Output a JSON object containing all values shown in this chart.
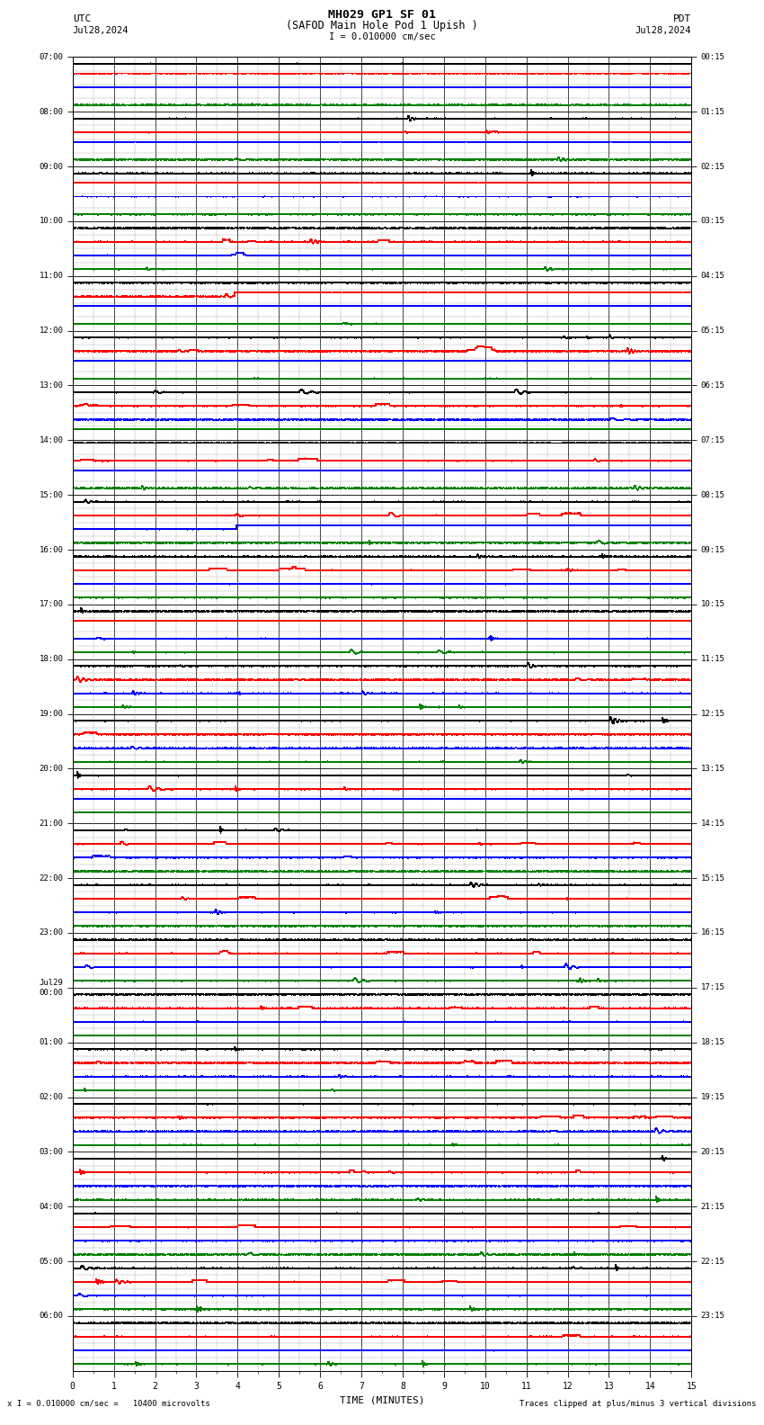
{
  "title_line1": "MH029 GP1 SF 01",
  "title_line2": "(SAFOD Main Hole Pod 1 Upish )",
  "scale_label": "I = 0.010000 cm/sec",
  "utc_label": "UTC",
  "pdt_label": "PDT",
  "date_left": "Jul28,2024",
  "date_right": "Jul28,2024",
  "bottom_label1": "x I = 0.010000 cm/sec =   10400 microvolts",
  "bottom_label2": "Traces clipped at plus/minus 3 vertical divisions",
  "xlabel": "TIME (MINUTES)",
  "ylabel_left_times": [
    "07:00",
    "08:00",
    "09:00",
    "10:00",
    "11:00",
    "12:00",
    "13:00",
    "14:00",
    "15:00",
    "16:00",
    "17:00",
    "18:00",
    "19:00",
    "20:00",
    "21:00",
    "22:00",
    "23:00",
    "Jul29\n00:00",
    "01:00",
    "02:00",
    "03:00",
    "04:00",
    "05:00",
    "06:00"
  ],
  "ylabel_right_times": [
    "00:15",
    "01:15",
    "02:15",
    "03:15",
    "04:15",
    "05:15",
    "06:15",
    "07:15",
    "08:15",
    "09:15",
    "10:15",
    "11:15",
    "12:15",
    "13:15",
    "14:15",
    "15:15",
    "16:15",
    "17:15",
    "18:15",
    "19:15",
    "20:15",
    "21:15",
    "22:15",
    "23:15"
  ],
  "num_rows": 24,
  "minutes_per_row": 15,
  "subtrace_colors_per_row": [
    [
      "#000000",
      "#ff0000",
      "#0000ff",
      "#008000"
    ],
    [
      "#000000",
      "#ff0000",
      "#0000ff",
      "#008000"
    ],
    [
      "#000000",
      "#ff0000",
      "#0000ff",
      "#008000"
    ],
    [
      "#000000",
      "#ff0000",
      "#0000ff",
      "#008000"
    ],
    [
      "#000000",
      "#ff0000",
      "#0000ff",
      "#008000"
    ],
    [
      "#000000",
      "#ff0000",
      "#0000ff",
      "#008000"
    ],
    [
      "#000000",
      "#ff0000",
      "#0000ff",
      "#008000"
    ],
    [
      "#000000",
      "#ff0000",
      "#0000ff",
      "#008000"
    ],
    [
      "#000000",
      "#ff0000",
      "#0000ff",
      "#008000"
    ],
    [
      "#000000",
      "#ff0000",
      "#0000ff",
      "#008000"
    ],
    [
      "#000000",
      "#ff0000",
      "#0000ff",
      "#008000"
    ],
    [
      "#000000",
      "#ff0000",
      "#0000ff",
      "#008000"
    ],
    [
      "#000000",
      "#ff0000",
      "#0000ff",
      "#008000"
    ],
    [
      "#000000",
      "#ff0000",
      "#0000ff",
      "#008000"
    ],
    [
      "#000000",
      "#ff0000",
      "#0000ff",
      "#008000"
    ],
    [
      "#000000",
      "#ff0000",
      "#0000ff",
      "#008000"
    ],
    [
      "#000000",
      "#ff0000",
      "#0000ff",
      "#008000"
    ],
    [
      "#000000",
      "#ff0000",
      "#0000ff",
      "#008000"
    ],
    [
      "#000000",
      "#ff0000",
      "#0000ff",
      "#008000"
    ],
    [
      "#000000",
      "#ff0000",
      "#0000ff",
      "#008000"
    ],
    [
      "#000000",
      "#ff0000",
      "#0000ff",
      "#008000"
    ],
    [
      "#000000",
      "#ff0000",
      "#0000ff",
      "#008000"
    ],
    [
      "#000000",
      "#ff0000",
      "#0000ff",
      "#008000"
    ],
    [
      "#000000",
      "#ff0000",
      "#0000ff",
      "#008000"
    ]
  ],
  "background_color": "#ffffff",
  "figsize": [
    8.5,
    15.84
  ],
  "dpi": 100
}
